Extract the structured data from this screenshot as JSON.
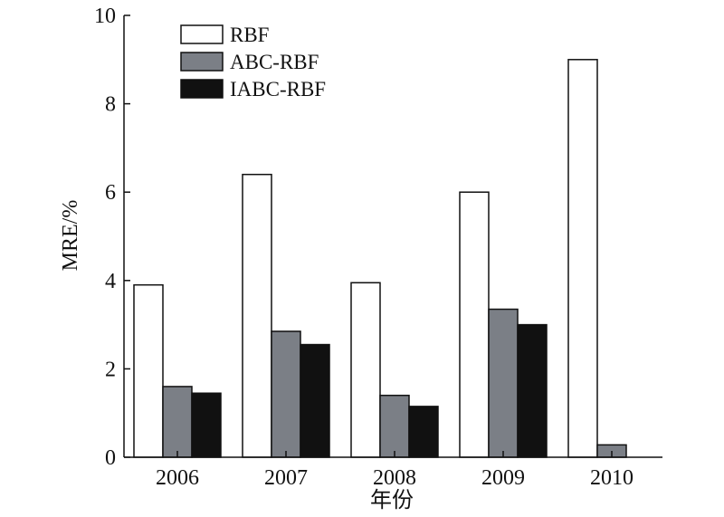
{
  "chart_data": {
    "type": "bar",
    "title": "",
    "xlabel": "年份",
    "ylabel": "MRE/%",
    "categories": [
      "2006",
      "2007",
      "2008",
      "2009",
      "2010"
    ],
    "ylim": [
      0,
      10
    ],
    "yticks": [
      "0",
      "2",
      "4",
      "6",
      "8",
      "10"
    ],
    "grid": false,
    "legend_position": "top-left",
    "series": [
      {
        "name": "RBF",
        "color": "#ffffff",
        "values": [
          3.9,
          6.4,
          3.95,
          6.0,
          9.0
        ]
      },
      {
        "name": "ABC-RBF",
        "color": "#7b7f86",
        "values": [
          1.6,
          2.85,
          1.4,
          3.35,
          0.28
        ]
      },
      {
        "name": "IABC-RBF",
        "color": "#111111",
        "values": [
          1.45,
          2.55,
          1.15,
          3.0,
          null
        ]
      }
    ]
  }
}
